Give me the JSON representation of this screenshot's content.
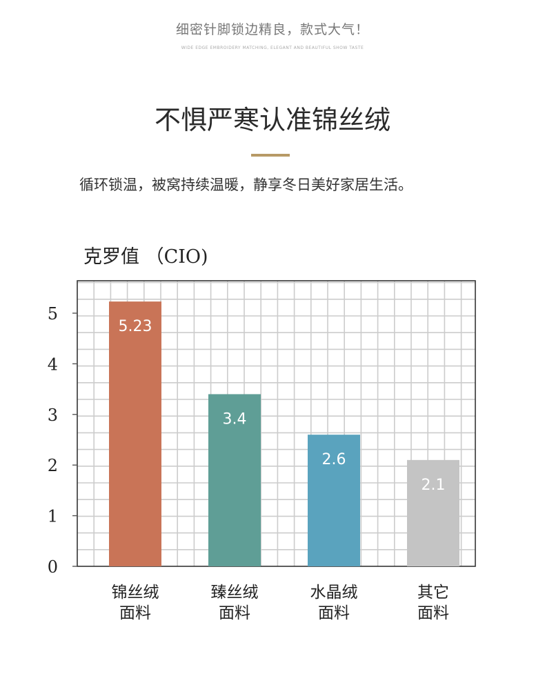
{
  "banner": {
    "title": "细密针脚锁边精良，款式大气！",
    "subtitle": "WIDE EDGE EMBROIDERY MATCHING, ELEGANT AND BEAUTIFUL SHOW TASTE"
  },
  "headline": "不惧严寒认准锦丝绒",
  "tagline": "循环锁温，被窝持续温暖，静享冬日美好家居生活。",
  "colors": {
    "accent_rule": "#b79a66",
    "bar_1": "#c97457",
    "bar_2": "#5f9e96",
    "bar_3": "#5aa3be",
    "bar_4": "#c4c4c4",
    "grid": "#cccccc",
    "frame": "#333333"
  },
  "chart_data": {
    "type": "bar",
    "title": "克罗值 （CIO)",
    "categories": [
      [
        "锦丝绒",
        "面料"
      ],
      [
        "臻丝绒",
        "面料"
      ],
      [
        "水晶绒",
        "面料"
      ],
      [
        "其它",
        "面料"
      ]
    ],
    "values": [
      5.23,
      3.4,
      2.6,
      2.1
    ],
    "value_labels": [
      "5.23",
      "3.4",
      "2.6",
      "2.1"
    ],
    "yticks": [
      "0",
      "1",
      "2",
      "3",
      "4",
      "5"
    ],
    "ylim": [
      0,
      5.6
    ],
    "grid": true,
    "legend": false
  }
}
